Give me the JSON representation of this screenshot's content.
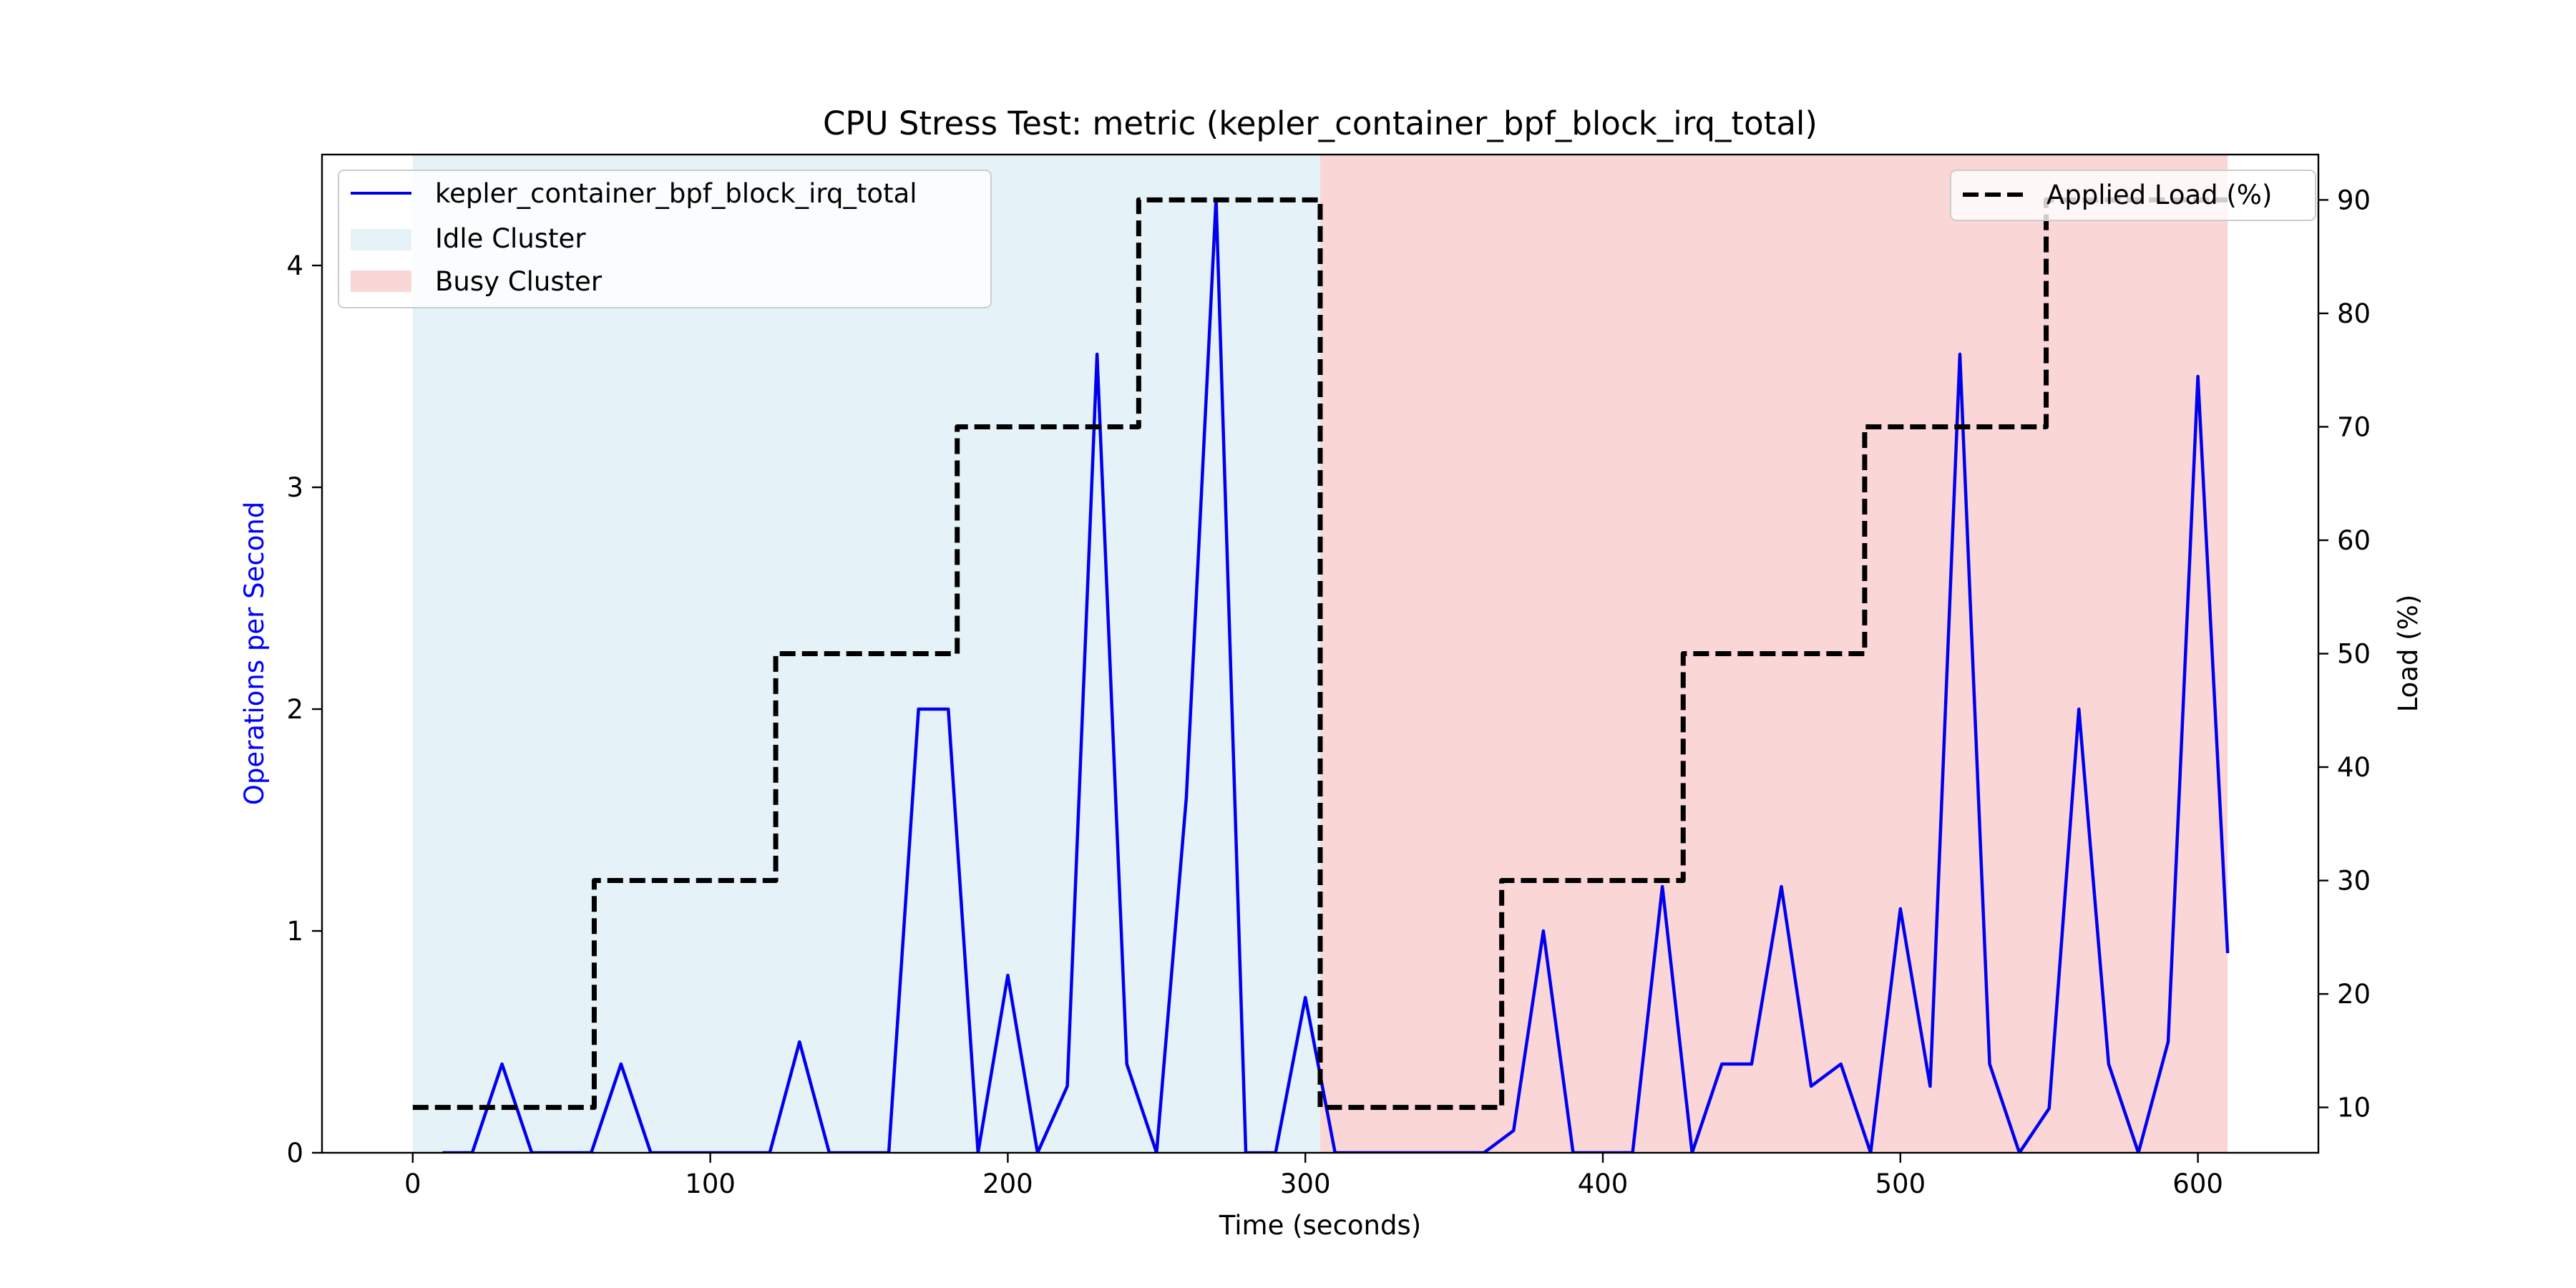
{
  "chart_data": {
    "type": "line",
    "title": "CPU Stress Test: metric (kepler_container_bpf_block_irq_total)",
    "xlabel": "Time (seconds)",
    "ylabel": "Operations per Second",
    "ylabel_right": "Load (%)",
    "xlim": [
      -30.5,
      640.5
    ],
    "ylim": [
      0,
      4.5
    ],
    "ylim_right": [
      6,
      94
    ],
    "x_ticks": [
      0,
      100,
      200,
      300,
      400,
      500,
      600
    ],
    "y_ticks": [
      0,
      1,
      2,
      3,
      4
    ],
    "y_right_ticks": [
      10,
      20,
      30,
      40,
      50,
      60,
      70,
      80,
      90
    ],
    "grid": false,
    "regions": [
      {
        "name": "Idle Cluster",
        "x_start": 0,
        "x_end": 305,
        "color": "#add8e6"
      },
      {
        "name": "Busy Cluster",
        "x_start": 305,
        "x_end": 610,
        "color": "#f08080"
      }
    ],
    "series": [
      {
        "name": "kepler_container_bpf_block_irq_total",
        "axis": "left",
        "color": "#0000ee",
        "x": [
          10,
          20,
          30,
          40,
          50,
          60,
          70,
          80,
          90,
          100,
          110,
          120,
          130,
          140,
          150,
          160,
          170,
          180,
          190,
          200,
          210,
          220,
          230,
          240,
          250,
          260,
          270,
          280,
          290,
          300,
          310,
          320,
          330,
          340,
          350,
          360,
          370,
          380,
          390,
          400,
          410,
          420,
          430,
          440,
          450,
          460,
          470,
          480,
          490,
          500,
          510,
          520,
          530,
          540,
          550,
          560,
          570,
          580,
          590,
          600,
          610
        ],
        "y": [
          0,
          0,
          0.4,
          0,
          0,
          0,
          0.4,
          0,
          0,
          0,
          0,
          0,
          0.5,
          0,
          0,
          0,
          2,
          2,
          0,
          0.8,
          0,
          0.3,
          3.6,
          0.4,
          0,
          1.6,
          4.3,
          0,
          0,
          0.7,
          0,
          0,
          0,
          0,
          0,
          0,
          0.1,
          1,
          0,
          0,
          0,
          1.2,
          0,
          0.4,
          0.4,
          1.2,
          0.3,
          0.4,
          0,
          1.1,
          0.3,
          3.6,
          0.4,
          0,
          0.2,
          2,
          0.4,
          0,
          0.5,
          3.5,
          0.9
        ]
      },
      {
        "name": "Applied Load (%)",
        "axis": "right",
        "color": "#000000",
        "style": "dashed-step",
        "x": [
          0,
          61,
          61,
          122,
          122,
          183,
          183,
          244,
          244,
          305,
          305,
          366,
          366,
          427,
          427,
          488,
          488,
          549,
          549,
          610
        ],
        "y": [
          10,
          10,
          30,
          30,
          50,
          50,
          70,
          70,
          90,
          90,
          10,
          10,
          30,
          30,
          50,
          50,
          70,
          70,
          90,
          90
        ]
      }
    ],
    "legend_left": {
      "placement": "upper-left",
      "entries": [
        "kepler_container_bpf_block_irq_total",
        "Idle Cluster",
        "Busy Cluster"
      ]
    },
    "legend_right": {
      "placement": "upper-right",
      "entries": [
        "Applied Load (%)"
      ]
    },
    "colors": {
      "primary_line": "#0000ee",
      "load_line": "#000000",
      "idle_region": "#add8e6",
      "busy_region": "#f08080",
      "left_axis_label": "#0000ff"
    }
  }
}
